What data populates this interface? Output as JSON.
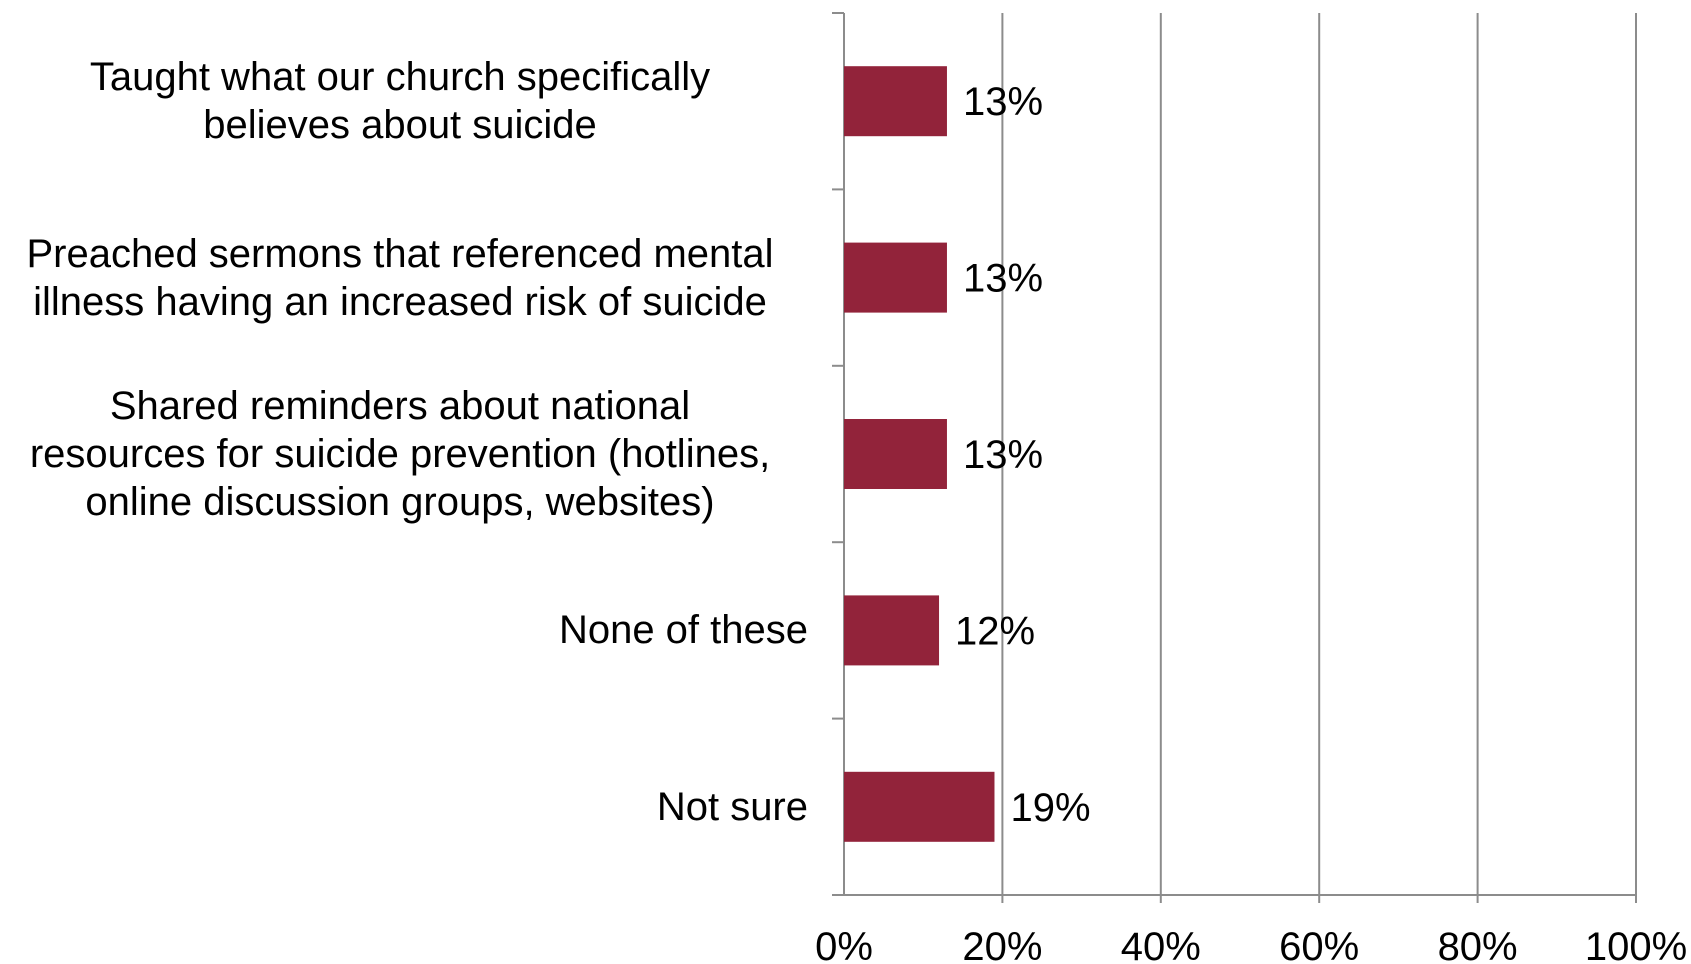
{
  "chart_data": {
    "type": "bar",
    "orientation": "horizontal",
    "categories": [
      "Taught what our church specifically\nbelieves about suicide",
      "Preached sermons that referenced mental\nillness having an increased risk of suicide",
      "Shared reminders about national\nresources for suicide prevention (hotlines,\nonline discussion groups, websites)",
      "None of these",
      "Not sure"
    ],
    "values": [
      13,
      13,
      13,
      12,
      19
    ],
    "data_labels": [
      "13%",
      "13%",
      "13%",
      "12%",
      "19%"
    ],
    "xlim": [
      0,
      100
    ],
    "x_ticks": [
      0,
      20,
      40,
      60,
      80,
      100
    ],
    "x_tick_labels": [
      "0%",
      "20%",
      "40%",
      "60%",
      "80%",
      "100%"
    ],
    "grid": true,
    "bar_color": "#92233a",
    "grid_color": "#8c8c8c",
    "title": "",
    "xlabel": "",
    "ylabel": ""
  }
}
